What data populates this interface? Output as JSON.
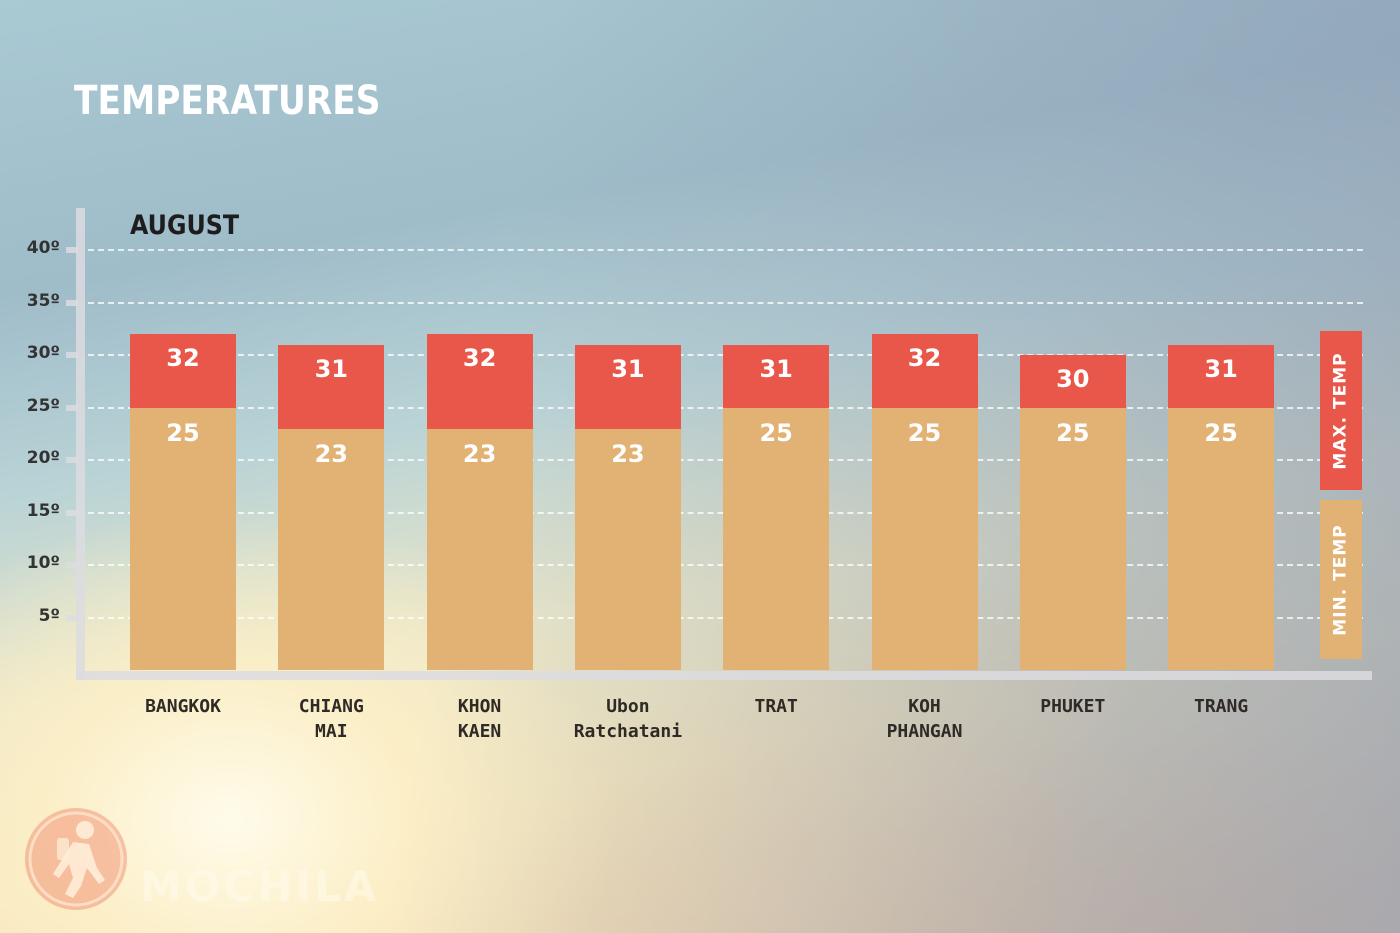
{
  "header": {
    "title": "TEMPERATURES",
    "subtitle": "AUGUST"
  },
  "axis": {
    "y_ticks": [
      "40º",
      "35º",
      "30º",
      "25º",
      "20º",
      "15º",
      "10º",
      "5º"
    ]
  },
  "legend": {
    "max_label": "MAX. TEMP",
    "min_label": "MIN. TEMP",
    "max_color": "#e8574a",
    "min_color": "#e2b274"
  },
  "cities": [
    {
      "name": "BANGKOK",
      "max": "32",
      "min": "25"
    },
    {
      "name": "CHIANG\nMAI",
      "max": "31",
      "min": "23"
    },
    {
      "name": "KHON\nKAEN",
      "max": "32",
      "min": "23"
    },
    {
      "name": "Ubon\nRatchatani",
      "max": "31",
      "min": "23"
    },
    {
      "name": "TRAT",
      "max": "31",
      "min": "25"
    },
    {
      "name": "KOH\nPHANGAN",
      "max": "32",
      "min": "25"
    },
    {
      "name": "PHUKET",
      "max": "30",
      "min": "25"
    },
    {
      "name": "TRANG",
      "max": "31",
      "min": "25"
    }
  ],
  "watermark": {
    "text": "MOCHILA"
  },
  "chart_data": {
    "type": "bar",
    "title": "TEMPERATURES",
    "subtitle": "AUGUST",
    "xlabel": "",
    "ylabel": "",
    "ylim": [
      0,
      40
    ],
    "y_ticks": [
      5,
      10,
      15,
      20,
      25,
      30,
      35,
      40
    ],
    "grid": true,
    "legend_position": "right",
    "stacked": "overlay",
    "categories": [
      "BANGKOK",
      "CHIANG MAI",
      "KHON KAEN",
      "Ubon Ratchatani",
      "TRAT",
      "KOH PHANGAN",
      "PHUKET",
      "TRANG"
    ],
    "series": [
      {
        "name": "MAX. TEMP",
        "color": "#e8574a",
        "values": [
          32,
          31,
          32,
          31,
          31,
          32,
          30,
          31
        ]
      },
      {
        "name": "MIN. TEMP",
        "color": "#e2b274",
        "values": [
          25,
          23,
          23,
          23,
          25,
          25,
          25,
          25
        ]
      }
    ],
    "units": "°C"
  }
}
